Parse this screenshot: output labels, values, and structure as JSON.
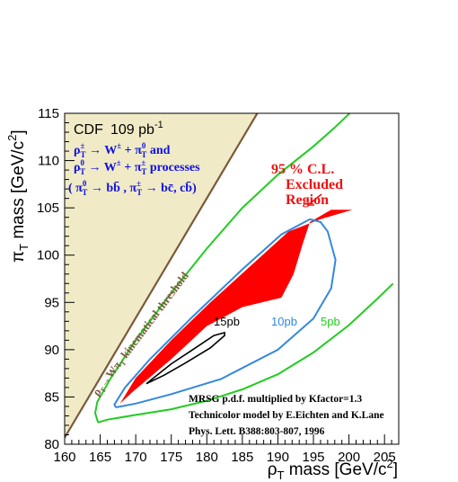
{
  "chart_data": {
    "type": "area",
    "title": "",
    "xlabel": "ρT mass [GeV/c2]",
    "ylabel": "πT mass [GeV/c2]",
    "xlim": [
      160,
      207
    ],
    "ylim": [
      80,
      115
    ],
    "xticks": [
      160,
      165,
      170,
      175,
      180,
      185,
      190,
      195,
      200,
      205
    ],
    "yticks": [
      80,
      85,
      90,
      95,
      100,
      105,
      110,
      115
    ],
    "grid": false,
    "header": {
      "experiment": "CDF",
      "luminosity": "109 pb",
      "luminosity_exp": "-1"
    },
    "process_lines": [
      "ρT± → W± + πT0 and",
      "ρT0 → W± + πT± processes",
      "( πT0 → bb̄ , πT± → bc̄, cb̄)"
    ],
    "excluded_label": [
      "95 % C.L.",
      "Excluded",
      "Region"
    ],
    "threshold_label": "ρT→WπT kinematical threshold",
    "footnotes": [
      "MRSG p.d.f.  multiplied by Kfactor=1.3",
      "Technicolor model by E.Eichten and K.Lane",
      "Phys. Lett. B388:803-807, 1996"
    ],
    "colors": {
      "forbidden": "#f0ebc6",
      "threshold_line": "#7a5a3c",
      "excluded": "#ff0000",
      "label_blue": "#1010e0",
      "label_red": "#ee1111",
      "c5": "#22cc22",
      "c10": "#3388dd",
      "c15": "#000000"
    },
    "series": [
      {
        "name": "kinematical threshold",
        "x": [
          160,
          187.1
        ],
        "y": [
          80.7,
          115
        ]
      },
      {
        "name": "95 % C.L. Excluded Region",
        "x": [
          167.8,
          169.5,
          175,
          180,
          185,
          190.5,
          192.2,
          193.5,
          194.5,
          197.5,
          200.5,
          196,
          191.5,
          180.5,
          175,
          170,
          167.8
        ],
        "y": [
          84.3,
          85.5,
          89,
          92.5,
          94.5,
          95.5,
          98,
          101.2,
          103.5,
          104.8,
          104.8,
          103.8,
          102.5,
          95,
          91,
          87,
          84.3
        ]
      },
      {
        "name": "15pb",
        "x": [
          171.5,
          174,
          177,
          180.5,
          182.5,
          182.5,
          181,
          178,
          175,
          172.5,
          171.5
        ],
        "y": [
          86.4,
          87.3,
          88.6,
          90.2,
          91.5,
          91.8,
          91.5,
          90,
          88.5,
          87,
          86.4
        ]
      },
      {
        "name": "10pb",
        "x": [
          167.2,
          170,
          175,
          182,
          190,
          195,
          197.5,
          198.1,
          197,
          196,
          194.5,
          190.5,
          185,
          178,
          172,
          168.5,
          167,
          167.2
        ],
        "y": [
          83.9,
          84.3,
          85.3,
          86.9,
          90,
          93.3,
          96.5,
          99.5,
          102.5,
          103.5,
          103.8,
          102.2,
          98.5,
          93.5,
          89,
          86,
          84.2,
          83.9
        ]
      },
      {
        "name": "5pb",
        "x": [
          164.7,
          166,
          170,
          175,
          180,
          185,
          190,
          195,
          200,
          204,
          206.2
        ],
        "y": [
          82.3,
          82.6,
          83.1,
          83.7,
          84.6,
          85.8,
          87.4,
          89.7,
          92.6,
          95.4,
          97
        ]
      },
      {
        "name": "5pb upper",
        "x": [
          164.7,
          164.3,
          164.6,
          166.5,
          170,
          175,
          180,
          185,
          190,
          195,
          198,
          200.1
        ],
        "y": [
          82.3,
          83.3,
          84.5,
          87,
          91,
          96,
          100.7,
          105,
          108.5,
          111.5,
          113.5,
          115
        ]
      }
    ]
  }
}
